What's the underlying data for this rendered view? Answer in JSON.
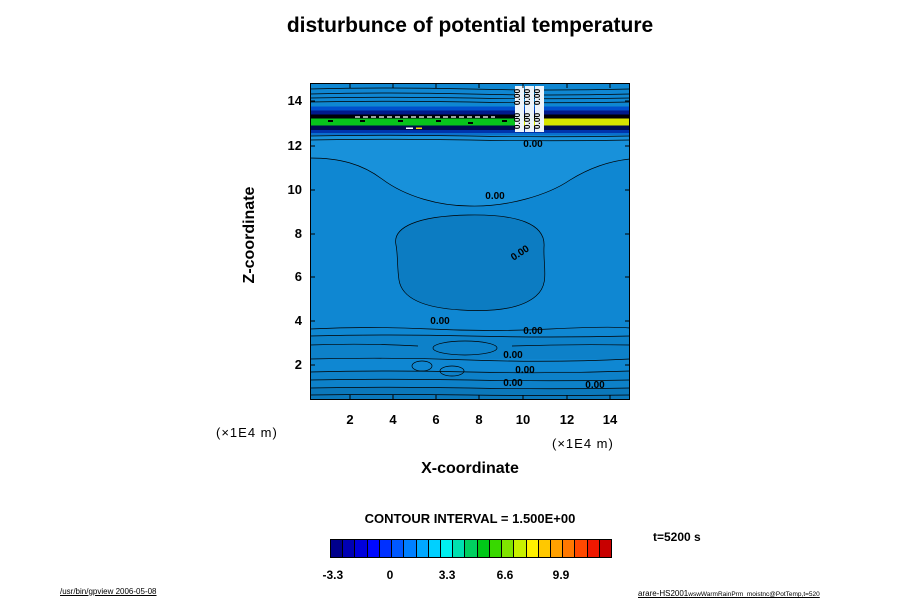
{
  "title": "disturbunce of potential temperature",
  "axes": {
    "y_label": "Z-coordinate",
    "x_label": "X-coordinate",
    "x_unit": "(×1E4 m)",
    "y_unit": "(×1E4 m)",
    "x_ticks": [
      "2",
      "4",
      "6",
      "8",
      "10",
      "12",
      "14"
    ],
    "y_ticks": [
      "14",
      "12",
      "10",
      "8",
      "6",
      "4",
      "2"
    ]
  },
  "contour": {
    "interval_label": "CONTOUR INTERVAL = 1.500E+00",
    "zero_label": "0.00",
    "time_label": "t=5200 s"
  },
  "colorbar": {
    "colors": [
      "#00008c",
      "#0000b4",
      "#0000dc",
      "#0008ff",
      "#0030ff",
      "#0058ff",
      "#0080ff",
      "#00a8ff",
      "#00d0ff",
      "#00f0f0",
      "#00e0b0",
      "#00d060",
      "#00c818",
      "#38d800",
      "#80e400",
      "#c8f000",
      "#fff000",
      "#ffc800",
      "#ffa000",
      "#ff7800",
      "#ff4800",
      "#f01800",
      "#c80000"
    ],
    "ticks": [
      {
        "label": "-3.3",
        "pos": 0.01
      },
      {
        "label": "0",
        "pos": 0.214
      },
      {
        "label": "3.3",
        "pos": 0.418
      },
      {
        "label": "6.6",
        "pos": 0.625
      },
      {
        "label": "9.9",
        "pos": 0.825
      }
    ]
  },
  "footer": {
    "left": "/usr/bin/gpview 2006-05-08",
    "right_main": "arare-HS2001",
    "right_sub": "wswWarmRainPrm_moistnc@PotTemp,t=520"
  },
  "palette": {
    "field_blue": "#0f87d2",
    "band_navy": "#001a8c",
    "band_black": "#000008",
    "band_green": "#08c41c",
    "band_yellow": "#d8e400"
  },
  "chart_data": {
    "type": "heatmap",
    "variant": "filled_contour_plot",
    "title": "disturbunce of potential temperature",
    "xlabel": "X-coordinate (×1E4 m)",
    "ylabel": "Z-coordinate (×1E4 m)",
    "xlim": [
      0,
      15
    ],
    "ylim": [
      0,
      15
    ],
    "x_ticks": [
      2,
      4,
      6,
      8,
      10,
      12,
      14
    ],
    "y_ticks": [
      2,
      4,
      6,
      8,
      10,
      12,
      14
    ],
    "contour_interval": 1.5,
    "visible_contour_label_value": 0.0,
    "colorbar_ticks": [
      -3.3,
      0,
      3.3,
      6.6,
      9.9
    ],
    "colorbar_orientation": "horizontal",
    "time_seconds": 5200,
    "field_summary": [
      {
        "region": "bulk of domain (z below ~12)",
        "value": "approximately 0 (uniform blue) with many closed 0.00 contour lines"
      },
      {
        "region": "layer z ~ 12.5-14.5",
        "value": "strong alternating horizontal disturbance bands: negative (dark blue / black, ~ -3 to -5) and positive (green / yellow, ~ +3 to +6)"
      },
      {
        "region": "near bottom z < 2.5",
        "value": "weak wavy 0.00 contours and small cellular features near x ~ 5-7"
      }
    ]
  }
}
